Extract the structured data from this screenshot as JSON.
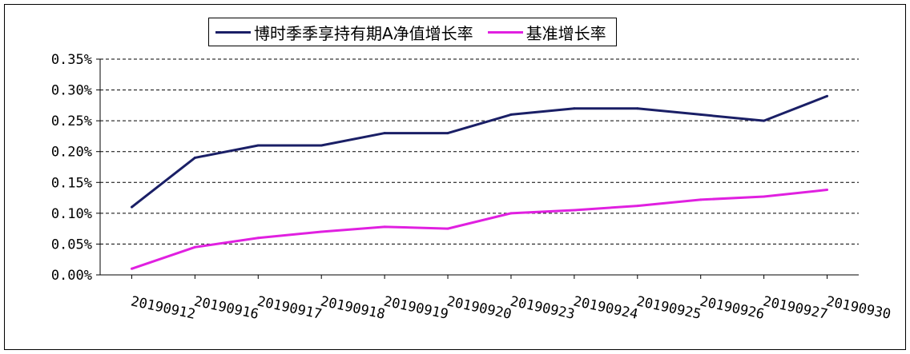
{
  "chart_data": {
    "type": "line",
    "title": "",
    "xlabel": "",
    "ylabel": "",
    "categories": [
      "20190912",
      "20190916",
      "20190917",
      "20190918",
      "20190919",
      "20190920",
      "20190923",
      "20190924",
      "20190925",
      "20190926",
      "20190927",
      "20190930"
    ],
    "y_ticks": [
      "0.00%",
      "0.05%",
      "0.10%",
      "0.15%",
      "0.20%",
      "0.25%",
      "0.30%",
      "0.35%"
    ],
    "ylim": [
      0,
      0.35
    ],
    "y_unit": "%",
    "grid": "horizontal dashed",
    "legend_position": "top-center",
    "series": [
      {
        "name": "博时季季享持有期A净值增长率",
        "color": "#1a1f66",
        "values": [
          0.11,
          0.19,
          0.21,
          0.21,
          0.23,
          0.23,
          0.26,
          0.27,
          0.27,
          0.26,
          0.25,
          0.29
        ]
      },
      {
        "name": "基准增长率",
        "color": "#e020e0",
        "values": [
          0.01,
          0.045,
          0.06,
          0.07,
          0.078,
          0.075,
          0.1,
          0.105,
          0.112,
          0.122,
          0.127,
          0.138
        ]
      }
    ]
  }
}
